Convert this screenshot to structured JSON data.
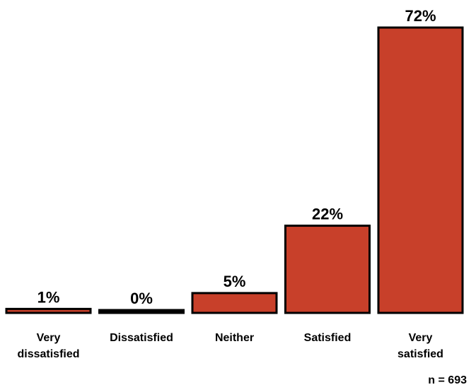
{
  "chart_data": {
    "type": "bar",
    "categories": [
      [
        "Very",
        "dissatisfied"
      ],
      [
        "Dissatisfied"
      ],
      [
        "Neither"
      ],
      [
        "Satisfied"
      ],
      [
        "Very",
        "satisfied"
      ]
    ],
    "values": [
      1,
      0,
      5,
      22,
      72
    ],
    "value_labels": [
      "1%",
      "0%",
      "5%",
      "22%",
      "72%"
    ],
    "ylim": [
      0,
      72
    ],
    "bar_color": "#c8402a",
    "bar_outline_color": "#000000",
    "note": "n = 693",
    "title": "",
    "xlabel": "",
    "ylabel": "",
    "grid": false,
    "legend": "none"
  }
}
